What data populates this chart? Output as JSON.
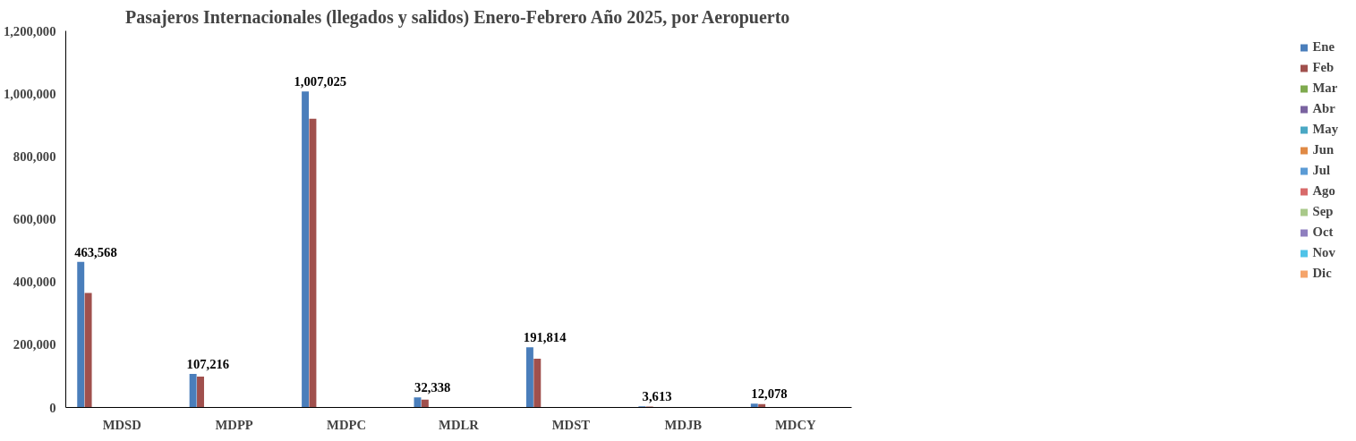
{
  "chart_data": {
    "type": "bar",
    "title": "Pasajeros Internacionales (llegados y salidos) Enero-Febrero Año 2025, por Aeropuerto",
    "categories": [
      "MDSD",
      "MDPP",
      "MDPC",
      "MDLR",
      "MDST",
      "MDJB",
      "MDCY"
    ],
    "series": [
      {
        "name": "Ene",
        "color": "#4a7ebb",
        "values": [
          463568,
          107216,
          1007025,
          32338,
          191814,
          3613,
          12078
        ],
        "value_labels": [
          "463,568",
          "107,216",
          "1,007,025",
          "32,338",
          "191,814",
          "3,613",
          "12,078"
        ]
      },
      {
        "name": "Feb",
        "color": "#a0504d",
        "values": [
          365000,
          98000,
          920000,
          25000,
          155000,
          3000,
          11000
        ]
      },
      {
        "name": "Mar",
        "color": "#7faa4f",
        "values": [
          null,
          null,
          null,
          null,
          null,
          null,
          null
        ]
      },
      {
        "name": "Abr",
        "color": "#7a63a0",
        "values": [
          null,
          null,
          null,
          null,
          null,
          null,
          null
        ]
      },
      {
        "name": "May",
        "color": "#4aa8c4",
        "values": [
          null,
          null,
          null,
          null,
          null,
          null,
          null
        ]
      },
      {
        "name": "Jun",
        "color": "#e08a45",
        "values": [
          null,
          null,
          null,
          null,
          null,
          null,
          null
        ]
      },
      {
        "name": "Jul",
        "color": "#5b9bd5",
        "values": [
          null,
          null,
          null,
          null,
          null,
          null,
          null
        ]
      },
      {
        "name": "Ago",
        "color": "#d86a6a",
        "values": [
          null,
          null,
          null,
          null,
          null,
          null,
          null
        ]
      },
      {
        "name": "Sep",
        "color": "#a9c98a",
        "values": [
          null,
          null,
          null,
          null,
          null,
          null,
          null
        ]
      },
      {
        "name": "Oct",
        "color": "#8f7fbf",
        "values": [
          null,
          null,
          null,
          null,
          null,
          null,
          null
        ]
      },
      {
        "name": "Nov",
        "color": "#4fc3e8",
        "values": [
          null,
          null,
          null,
          null,
          null,
          null,
          null
        ]
      },
      {
        "name": "Dic",
        "color": "#f5a46a",
        "values": [
          null,
          null,
          null,
          null,
          null,
          null,
          null
        ]
      }
    ],
    "ylim": [
      0,
      1200000
    ],
    "yticks": [
      {
        "value": 0,
        "label": "0"
      },
      {
        "value": 200000,
        "label": "200,000"
      },
      {
        "value": 400000,
        "label": "400,000"
      },
      {
        "value": 600000,
        "label": "600,000"
      },
      {
        "value": 800000,
        "label": "800,000"
      },
      {
        "value": 1000000,
        "label": "1,000,000"
      },
      {
        "value": 1200000,
        "label": "1,200,000"
      }
    ],
    "grid": false,
    "legend": "right"
  }
}
